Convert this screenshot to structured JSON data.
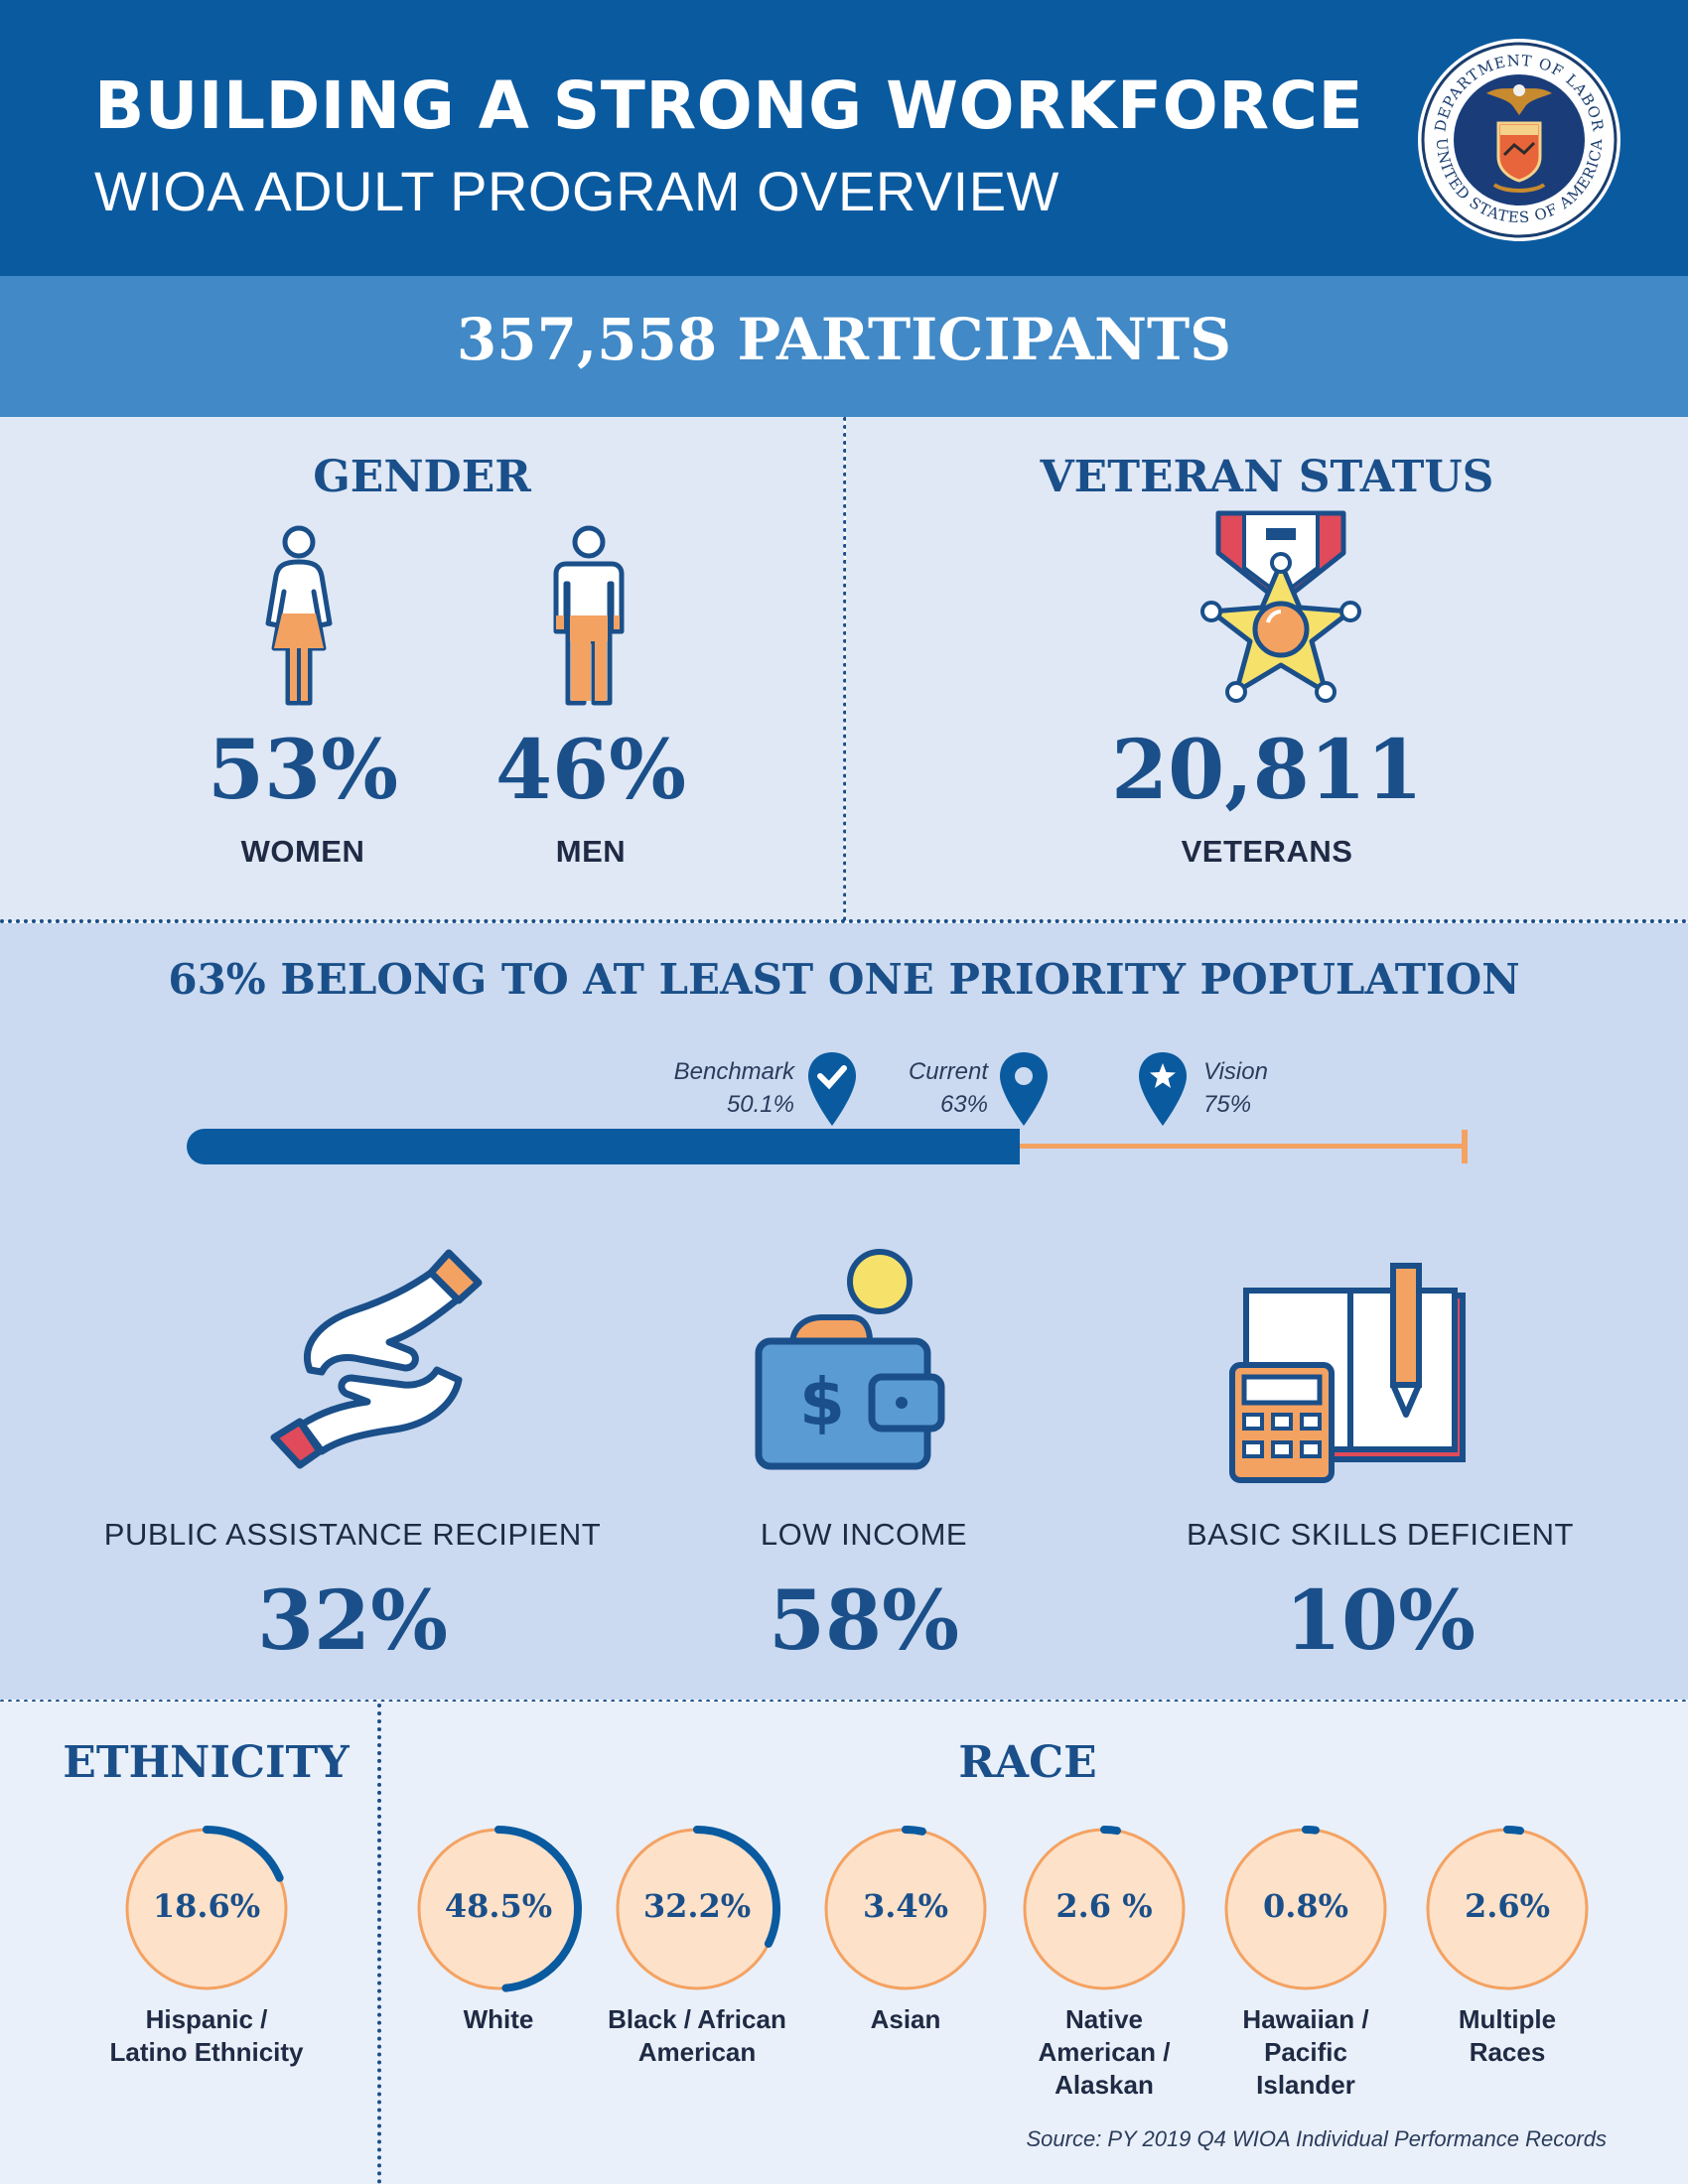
{
  "header": {
    "title": "BUILDING A STRONG WORKFORCE",
    "subtitle": "WIOA ADULT PROGRAM OVERVIEW",
    "seal_top_text": "DEPARTMENT OF LABOR",
    "seal_bottom_text": "UNITED STATES OF AMERICA"
  },
  "participants": "357,558 PARTICIPANTS",
  "gender": {
    "title": "GENDER",
    "women_pct": "53%",
    "women_label": "WOMEN",
    "men_pct": "46%",
    "men_label": "MEN"
  },
  "veteran": {
    "title": "VETERAN STATUS",
    "count": "20,811",
    "label": "VETERANS"
  },
  "priority": {
    "title": "63% BELONG TO AT LEAST ONE PRIORITY POPULATION",
    "current_fraction": 0.63,
    "benchmark_label": "Benchmark",
    "benchmark_value": "50.1%",
    "current_label": "Current",
    "current_value": "63%",
    "vision_label": "Vision",
    "vision_value": "75%",
    "categories": [
      {
        "label": "PUBLIC ASSISTANCE RECIPIENT",
        "value": "32%",
        "icon": "hands-icon"
      },
      {
        "label": "LOW INCOME",
        "value": "58%",
        "icon": "wallet-icon"
      },
      {
        "label": "BASIC SKILLS DEFICIENT",
        "value": "10%",
        "icon": "calculator-book-icon"
      }
    ]
  },
  "ethnicity": {
    "title": "ETHNICITY",
    "items": [
      {
        "value": "18.6%",
        "label_line1": "Hispanic /",
        "label_line2": "Latino Ethnicity",
        "label_line3": "",
        "fraction": 0.186
      }
    ]
  },
  "race": {
    "title": "RACE",
    "items": [
      {
        "value": "48.5%",
        "label_line1": "White",
        "label_line2": "",
        "label_line3": "",
        "fraction": 0.485
      },
      {
        "value": "32.2%",
        "label_line1": "Black / African",
        "label_line2": "American",
        "label_line3": "",
        "fraction": 0.322
      },
      {
        "value": "3.4%",
        "label_line1": "Asian",
        "label_line2": "",
        "label_line3": "",
        "fraction": 0.034
      },
      {
        "value": "2.6 %",
        "label_line1": "Native",
        "label_line2": "American /",
        "label_line3": "Alaskan",
        "fraction": 0.026
      },
      {
        "value": "0.8%",
        "label_line1": "Hawaiian /",
        "label_line2": "Pacific",
        "label_line3": "Islander",
        "fraction": 0.008
      },
      {
        "value": "2.6%",
        "label_line1": "Multiple",
        "label_line2": "Races",
        "label_line3": "",
        "fraction": 0.026
      }
    ]
  },
  "source": "Source: PY 2019 Q4 WIOA Individual Performance Records",
  "colors": {
    "navy": "#0a5aa0",
    "dark_blue": "#1a4f8a",
    "orange": "#f4a262",
    "peach": "#fde1c8"
  }
}
